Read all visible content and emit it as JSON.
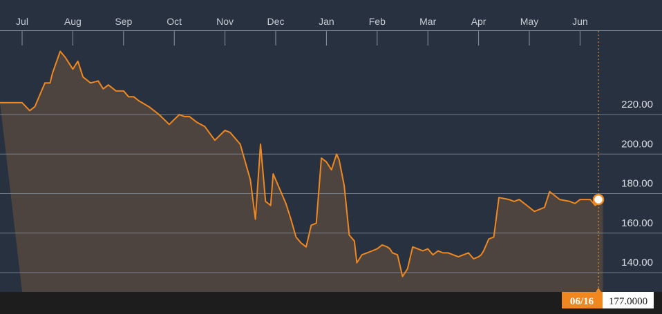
{
  "chart_data": {
    "type": "area",
    "x_axis": {
      "tick_labels": [
        "Jul",
        "Aug",
        "Sep",
        "Oct",
        "Nov",
        "Dec",
        "Jan",
        "Feb",
        "Mar",
        "Apr",
        "May",
        "Jun"
      ]
    },
    "y_axis": {
      "tick_labels": [
        "220.00",
        "200.00",
        "180.00",
        "160.00",
        "140.00"
      ],
      "tick_values": [
        220,
        200,
        180,
        160,
        140
      ],
      "ylim": [
        130,
        262
      ],
      "position": "right"
    },
    "grid": true,
    "series": [
      {
        "color": "#f0881f",
        "fill_color": "#4d443f",
        "x_month_index": [
          0,
          0.15,
          0.25,
          0.35,
          0.45,
          0.55,
          0.6,
          0.75,
          0.85,
          1.0,
          1.1,
          1.2,
          1.35,
          1.5,
          1.6,
          1.7,
          1.85,
          2.0,
          2.1,
          2.2,
          2.3,
          2.5,
          2.7,
          2.9,
          3.1,
          3.2,
          3.3,
          3.45,
          3.6,
          3.8,
          4.0,
          4.1,
          4.3,
          4.5,
          4.6,
          4.7,
          4.8,
          4.9,
          4.95,
          5.05,
          5.2,
          5.25,
          5.3,
          5.4,
          5.5,
          5.6,
          5.7,
          5.8,
          5.9,
          6.0,
          6.1,
          6.2,
          6.25,
          6.35,
          6.45,
          6.55,
          6.6,
          6.65,
          6.7,
          6.8,
          6.9,
          7.0,
          7.1,
          7.2,
          7.25,
          7.3,
          7.4,
          7.5,
          7.6,
          7.7,
          7.8,
          7.9,
          8.0,
          8.1,
          8.2,
          8.3,
          8.4,
          8.6,
          8.8,
          8.9,
          9.0,
          9.05,
          9.1,
          9.2,
          9.3,
          9.4,
          9.6,
          9.7,
          9.8,
          9.9,
          10.0,
          10.1,
          10.2,
          10.3,
          10.4,
          10.6,
          10.8,
          10.9,
          11.0,
          11.1,
          11.2,
          11.3,
          11.45
        ],
        "values": [
          226,
          222,
          224,
          230,
          236,
          236,
          241,
          252,
          249,
          243,
          247,
          239,
          236,
          237,
          233,
          235,
          232,
          232,
          229,
          229,
          227,
          224,
          220,
          215,
          220,
          219,
          219,
          216,
          214,
          207,
          212,
          211,
          205,
          187,
          167,
          205,
          176,
          174,
          190,
          184,
          175,
          171,
          167,
          158,
          155,
          153,
          164,
          165,
          198,
          196,
          192,
          200,
          197,
          184,
          159,
          156,
          145,
          147,
          149,
          150,
          151,
          152,
          154,
          153,
          152,
          150,
          149,
          138,
          142,
          153,
          152,
          151,
          152,
          149,
          151,
          150,
          150,
          148,
          150,
          147,
          148,
          149,
          151,
          157,
          158,
          178,
          177,
          176,
          177,
          175,
          173,
          171,
          172,
          173,
          181,
          177,
          176,
          175,
          177,
          177,
          177,
          174,
          177
        ],
        "last_point": {
          "x_month_index": 11.45,
          "value": 177
        }
      }
    ]
  },
  "tooltip": {
    "date": "06/16",
    "value": "177.0000"
  },
  "colors": {
    "background": "#27313f",
    "line": "#f0881f",
    "area_fill": "#4d443f",
    "grid": "#8b95a3",
    "tooltip_bg": "#f0881f",
    "tooltip_value_bg": "#ffffff"
  }
}
